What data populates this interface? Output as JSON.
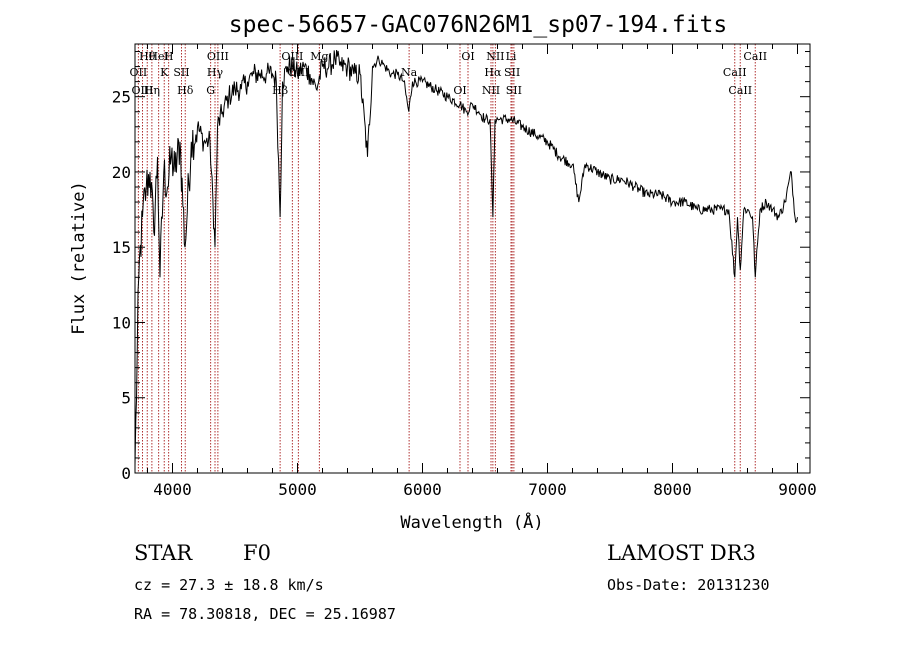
{
  "chart_data": {
    "type": "line",
    "title": "spec-56657-GAC076N26M1_sp07-194.fits",
    "xlabel": "Wavelength (Å)",
    "ylabel": "Flux (relative)",
    "xlim": [
      3700,
      9100
    ],
    "ylim": [
      0,
      28.5
    ],
    "xticks": [
      4000,
      5000,
      6000,
      7000,
      8000,
      9000
    ],
    "yticks": [
      0,
      5,
      10,
      15,
      20,
      25
    ],
    "series": [
      {
        "name": "flux",
        "x": [
          3700,
          3730,
          3760,
          3790,
          3820,
          3850,
          3880,
          3900,
          3930,
          3960,
          3990,
          4020,
          4060,
          4100,
          4150,
          4200,
          4250,
          4300,
          4340,
          4360,
          4400,
          4450,
          4500,
          4550,
          4600,
          4650,
          4700,
          4750,
          4800,
          4830,
          4861,
          4880,
          4920,
          4960,
          5000,
          5050,
          5100,
          5150,
          5200,
          5250,
          5300,
          5350,
          5400,
          5450,
          5500,
          5560,
          5600,
          5650,
          5700,
          5750,
          5800,
          5850,
          5890,
          5920,
          6000,
          6100,
          6200,
          6300,
          6350,
          6400,
          6450,
          6500,
          6540,
          6563,
          6580,
          6620,
          6700,
          6800,
          6900,
          7000,
          7100,
          7200,
          7250,
          7300,
          7400,
          7500,
          7600,
          7700,
          7800,
          7900,
          8000,
          8100,
          8200,
          8300,
          8400,
          8450,
          8498,
          8520,
          8542,
          8570,
          8600,
          8640,
          8662,
          8700,
          8750,
          8800,
          8850,
          8900,
          8950,
          8980,
          9000
        ],
        "y": [
          0.5,
          13,
          17,
          19,
          20,
          16,
          21,
          13,
          20,
          19,
          21,
          20,
          22,
          15,
          22,
          23,
          22,
          22,
          15,
          23,
          24,
          25,
          25.5,
          25.5,
          26,
          26.5,
          26.5,
          26.5,
          26.5,
          26,
          17,
          26,
          27,
          27,
          26.5,
          27,
          26.5,
          25.5,
          27,
          27,
          27.5,
          27,
          27,
          26.5,
          26.5,
          21,
          27,
          27.5,
          27,
          26.5,
          26.5,
          26,
          24,
          26,
          26,
          25.5,
          25,
          24.5,
          24,
          24.5,
          24,
          23.5,
          23.5,
          17,
          23.5,
          23.5,
          23.5,
          23,
          22.5,
          22,
          21,
          20.5,
          18,
          20.5,
          20,
          19.5,
          19.5,
          19,
          18.5,
          18.5,
          18,
          18,
          17.5,
          17.5,
          17.5,
          17.5,
          13,
          17,
          13.5,
          17.5,
          17.5,
          17,
          13,
          17.5,
          18,
          17.5,
          17,
          18,
          20,
          17,
          17
        ]
      }
    ],
    "lines": [
      {
        "name": "Hθ",
        "wave": 3798
      },
      {
        "name": "OII",
        "wave": 3727
      },
      {
        "name": "OIII",
        "wave": 3760
      },
      {
        "name": "HeI",
        "wave": 3889
      },
      {
        "name": "K",
        "wave": 3934
      },
      {
        "name": "Hη",
        "wave": 3835
      },
      {
        "name": "H",
        "wave": 3969
      },
      {
        "name": "SII",
        "wave": 4072
      },
      {
        "name": "Hδ",
        "wave": 4102
      },
      {
        "name": "OIII",
        "wave": 4363
      },
      {
        "name": "Hγ",
        "wave": 4340
      },
      {
        "name": "G",
        "wave": 4305
      },
      {
        "name": "OIII",
        "wave": 4959
      },
      {
        "name": "OIII",
        "wave": 5007
      },
      {
        "name": "Hβ",
        "wave": 4861
      },
      {
        "name": "Mg",
        "wave": 5175
      },
      {
        "name": "Na",
        "wave": 5893
      },
      {
        "name": "OI",
        "wave": 6300
      },
      {
        "name": "OI",
        "wave": 6364
      },
      {
        "name": "Hα",
        "wave": 6563
      },
      {
        "name": "NII",
        "wave": 6548
      },
      {
        "name": "NII",
        "wave": 6583
      },
      {
        "name": "SII",
        "wave": 6717
      },
      {
        "name": "SII",
        "wave": 6731
      },
      {
        "name": "Li",
        "wave": 6708
      },
      {
        "name": "CaII",
        "wave": 8498
      },
      {
        "name": "CaII",
        "wave": 8542
      },
      {
        "name": "CaII",
        "wave": 8662
      }
    ],
    "line_color": "#b03030"
  },
  "info": {
    "object_class": "STAR",
    "subclass": "F0",
    "survey": "LAMOST DR3",
    "cz": "cz = 27.3 ± 18.8 km/s",
    "obs_date": "Obs-Date: 20131230",
    "coords": "RA =  78.30818, DEC =  25.16987"
  }
}
